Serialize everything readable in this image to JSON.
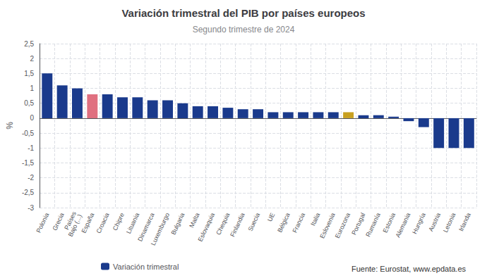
{
  "chart_data": {
    "type": "bar",
    "title": "Variación trimestral del PIB por países europeos",
    "subtitle": "Segundo trimestre de 2024",
    "ylabel": "%",
    "ylim": [
      -3,
      2.5
    ],
    "yticks": [
      -3,
      {
        "value": -2.5,
        "label": "-2,5"
      },
      -2,
      {
        "value": -1.5,
        "label": "-1,5"
      },
      -1,
      {
        "value": -0.5,
        "label": "-0,5"
      },
      0,
      {
        "value": 0.5,
        "label": "0,5"
      },
      1,
      {
        "value": 1.5,
        "label": "1,5"
      },
      2,
      {
        "value": 2.5,
        "label": "2,5"
      }
    ],
    "categories": [
      "Polonia",
      "Grecia",
      "Países\nBajo (...)",
      "España",
      "Croacia",
      "Chipre",
      "Lituania",
      "Dinamarca",
      "Luxemburgo",
      "Bulgaria",
      "Malta",
      "Eslovaquia",
      "Chequia",
      "Finlandia",
      "Suecia",
      "UE",
      "Bélgica",
      "Francia",
      "Italia",
      "Eslovenia",
      "Eurozona",
      "Portugal",
      "Rumanía",
      "Estonia",
      "Alemania",
      "Hungría",
      "Austria",
      "Letonia",
      "Irlanda"
    ],
    "series": [
      {
        "name": "Variación trimestral",
        "color": "#1a3a8c",
        "values": [
          1.5,
          1.1,
          1.0,
          0.8,
          0.8,
          0.7,
          0.7,
          0.6,
          0.6,
          0.5,
          0.4,
          0.4,
          0.35,
          0.3,
          0.3,
          0.2,
          0.2,
          0.2,
          0.2,
          0.2,
          0.2,
          0.1,
          0.1,
          0.05,
          -0.1,
          -0.3,
          -1.0,
          -1.0,
          -1.0
        ]
      }
    ],
    "colors": [
      "#1a3a8c",
      "#1a3a8c",
      "#1a3a8c",
      "#e07080",
      "#1a3a8c",
      "#1a3a8c",
      "#1a3a8c",
      "#1a3a8c",
      "#1a3a8c",
      "#1a3a8c",
      "#1a3a8c",
      "#1a3a8c",
      "#1a3a8c",
      "#1a3a8c",
      "#1a3a8c",
      "#1a3a8c",
      "#1a3a8c",
      "#1a3a8c",
      "#1a3a8c",
      "#1a3a8c",
      "#c8a020",
      "#1a3a8c",
      "#1a3a8c",
      "#1a3a8c",
      "#1a3a8c",
      "#1a3a8c",
      "#1a3a8c",
      "#1a3a8c",
      "#1a3a8c"
    ],
    "annotation": "Fuente: Eurostat, www.epdata.es",
    "legend": "bottom",
    "grid": true
  }
}
